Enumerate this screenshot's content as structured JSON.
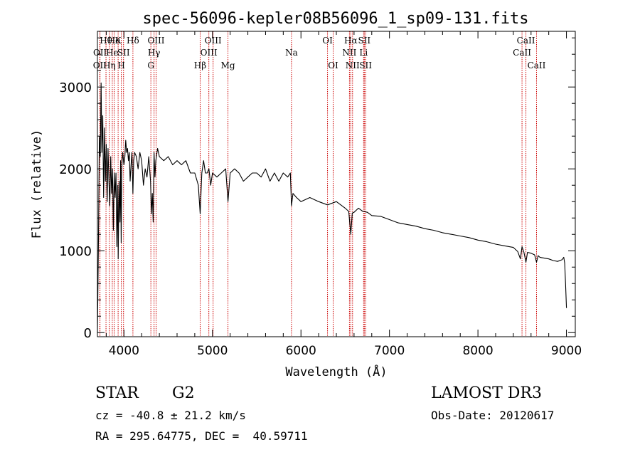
{
  "chart_data": {
    "type": "line",
    "title": "spec-56096-kepler08B56096_1_sp09-131.fits",
    "xlabel": "Wavelength (Å)",
    "ylabel": "Flux (relative)",
    "xlim": [
      3700,
      9100
    ],
    "ylim": [
      -50,
      3680
    ],
    "xticks": [
      4000,
      5000,
      6000,
      7000,
      8000,
      9000
    ],
    "yticks": [
      0,
      1000,
      2000,
      3000
    ],
    "grid": false,
    "series": [
      {
        "name": "flux",
        "x": [
          3700,
          3712,
          3722,
          3732,
          3742,
          3750,
          3760,
          3770,
          3780,
          3790,
          3800,
          3810,
          3820,
          3830,
          3840,
          3850,
          3860,
          3870,
          3880,
          3890,
          3900,
          3910,
          3920,
          3930,
          3935,
          3945,
          3955,
          3962,
          3968,
          3975,
          3985,
          4000,
          4010,
          4020,
          4030,
          4040,
          4050,
          4060,
          4070,
          4080,
          4090,
          4101,
          4110,
          4120,
          4140,
          4160,
          4180,
          4200,
          4220,
          4240,
          4260,
          4280,
          4300,
          4310,
          4320,
          4330,
          4340,
          4350,
          4360,
          4380,
          4400,
          4450,
          4500,
          4550,
          4600,
          4650,
          4700,
          4750,
          4800,
          4840,
          4861,
          4880,
          4900,
          4920,
          4940,
          4960,
          4980,
          5000,
          5050,
          5100,
          5150,
          5175,
          5200,
          5250,
          5300,
          5350,
          5400,
          5450,
          5500,
          5550,
          5600,
          5650,
          5700,
          5750,
          5800,
          5850,
          5880,
          5893,
          5910,
          5950,
          6000,
          6100,
          6200,
          6300,
          6400,
          6500,
          6540,
          6563,
          6580,
          6600,
          6650,
          6700,
          6750,
          6800,
          6900,
          7000,
          7100,
          7200,
          7300,
          7400,
          7500,
          7600,
          7700,
          7800,
          7900,
          8000,
          8100,
          8200,
          8300,
          8400,
          8450,
          8480,
          8498,
          8520,
          8542,
          8560,
          8600,
          8640,
          8662,
          8680,
          8700,
          8750,
          8800,
          8850,
          8900,
          8950,
          8970,
          8980,
          8990,
          9000
        ],
        "y": [
          0,
          1150,
          2400,
          2150,
          3050,
          2200,
          2650,
          1650,
          2500,
          1850,
          2300,
          1600,
          2250,
          1850,
          1550,
          2150,
          1700,
          2000,
          1250,
          1950,
          1650,
          1950,
          1050,
          1800,
          900,
          1850,
          1350,
          2100,
          1100,
          2000,
          2200,
          2050,
          2150,
          2350,
          2200,
          2250,
          2100,
          2200,
          1850,
          2050,
          2200,
          1700,
          2100,
          2200,
          2150,
          2000,
          2200,
          2100,
          1800,
          2000,
          1900,
          2150,
          1850,
          1450,
          1700,
          1350,
          2200,
          1900,
          2100,
          2250,
          2150,
          2100,
          2150,
          2050,
          2100,
          2050,
          2100,
          1950,
          1950,
          1800,
          1450,
          1950,
          2100,
          1950,
          1950,
          2000,
          1800,
          1950,
          1900,
          1950,
          2000,
          1600,
          1950,
          2000,
          1950,
          1850,
          1900,
          1950,
          1950,
          1900,
          2000,
          1850,
          1950,
          1850,
          1950,
          1900,
          1950,
          1550,
          1700,
          1650,
          1600,
          1650,
          1600,
          1560,
          1600,
          1520,
          1480,
          1200,
          1460,
          1470,
          1520,
          1480,
          1470,
          1430,
          1420,
          1380,
          1340,
          1320,
          1300,
          1270,
          1250,
          1220,
          1200,
          1180,
          1160,
          1130,
          1110,
          1080,
          1060,
          1040,
          990,
          900,
          1050,
          980,
          860,
          980,
          970,
          950,
          860,
          940,
          920,
          910,
          900,
          880,
          870,
          890,
          920,
          850,
          600,
          300
        ]
      }
    ],
    "lines": [
      {
        "w": 3727,
        "label": "OII",
        "row": 3
      },
      {
        "w": 3729,
        "label": "OII",
        "row": 2
      },
      {
        "w": 3797,
        "label": "Hθ",
        "row": 1
      },
      {
        "w": 3835,
        "label": "Hη",
        "row": 3
      },
      {
        "w": 3868,
        "label": "He",
        "row": 2
      },
      {
        "w": 3889,
        "label": "He",
        "row": 1
      },
      {
        "w": 3934,
        "label": "K",
        "row": 1
      },
      {
        "w": 3970,
        "label": "H",
        "row": 3
      },
      {
        "w": 3995,
        "label": "SII",
        "row": 2
      },
      {
        "w": 4101,
        "label": "Hδ",
        "row": 1
      },
      {
        "w": 4304,
        "label": "G",
        "row": 3
      },
      {
        "w": 4340,
        "label": "Hγ",
        "row": 2
      },
      {
        "w": 4363,
        "label": "OIII",
        "row": 1
      },
      {
        "w": 4861,
        "label": "Hβ",
        "row": 3
      },
      {
        "w": 4959,
        "label": "OIII",
        "row": 2
      },
      {
        "w": 5007,
        "label": "OIII",
        "row": 1
      },
      {
        "w": 5175,
        "label": "Mg",
        "row": 3
      },
      {
        "w": 5893,
        "label": "Na",
        "row": 2
      },
      {
        "w": 6300,
        "label": "OI",
        "row": 1
      },
      {
        "w": 6364,
        "label": "OI",
        "row": 3
      },
      {
        "w": 6548,
        "label": "NII",
        "row": 2
      },
      {
        "w": 6563,
        "label": "Hα",
        "row": 1
      },
      {
        "w": 6583,
        "label": "NII",
        "row": 3
      },
      {
        "w": 6708,
        "label": "Li",
        "row": 2
      },
      {
        "w": 6716,
        "label": "SII",
        "row": 1
      },
      {
        "w": 6731,
        "label": "SII",
        "row": 3
      },
      {
        "w": 8498,
        "label": "CaII",
        "row": 2
      },
      {
        "w": 8542,
        "label": "CaII",
        "row": 1
      },
      {
        "w": 8662,
        "label": "CaII",
        "row": 3
      }
    ]
  },
  "info": {
    "class_label": "STAR",
    "subclass": "G2",
    "survey": "LAMOST DR3",
    "redshift": "cz = -40.8 ± 21.2 km/s",
    "obs_date": "Obs-Date: 20120617",
    "coords": "RA = 295.64775, DEC =  40.59711"
  }
}
